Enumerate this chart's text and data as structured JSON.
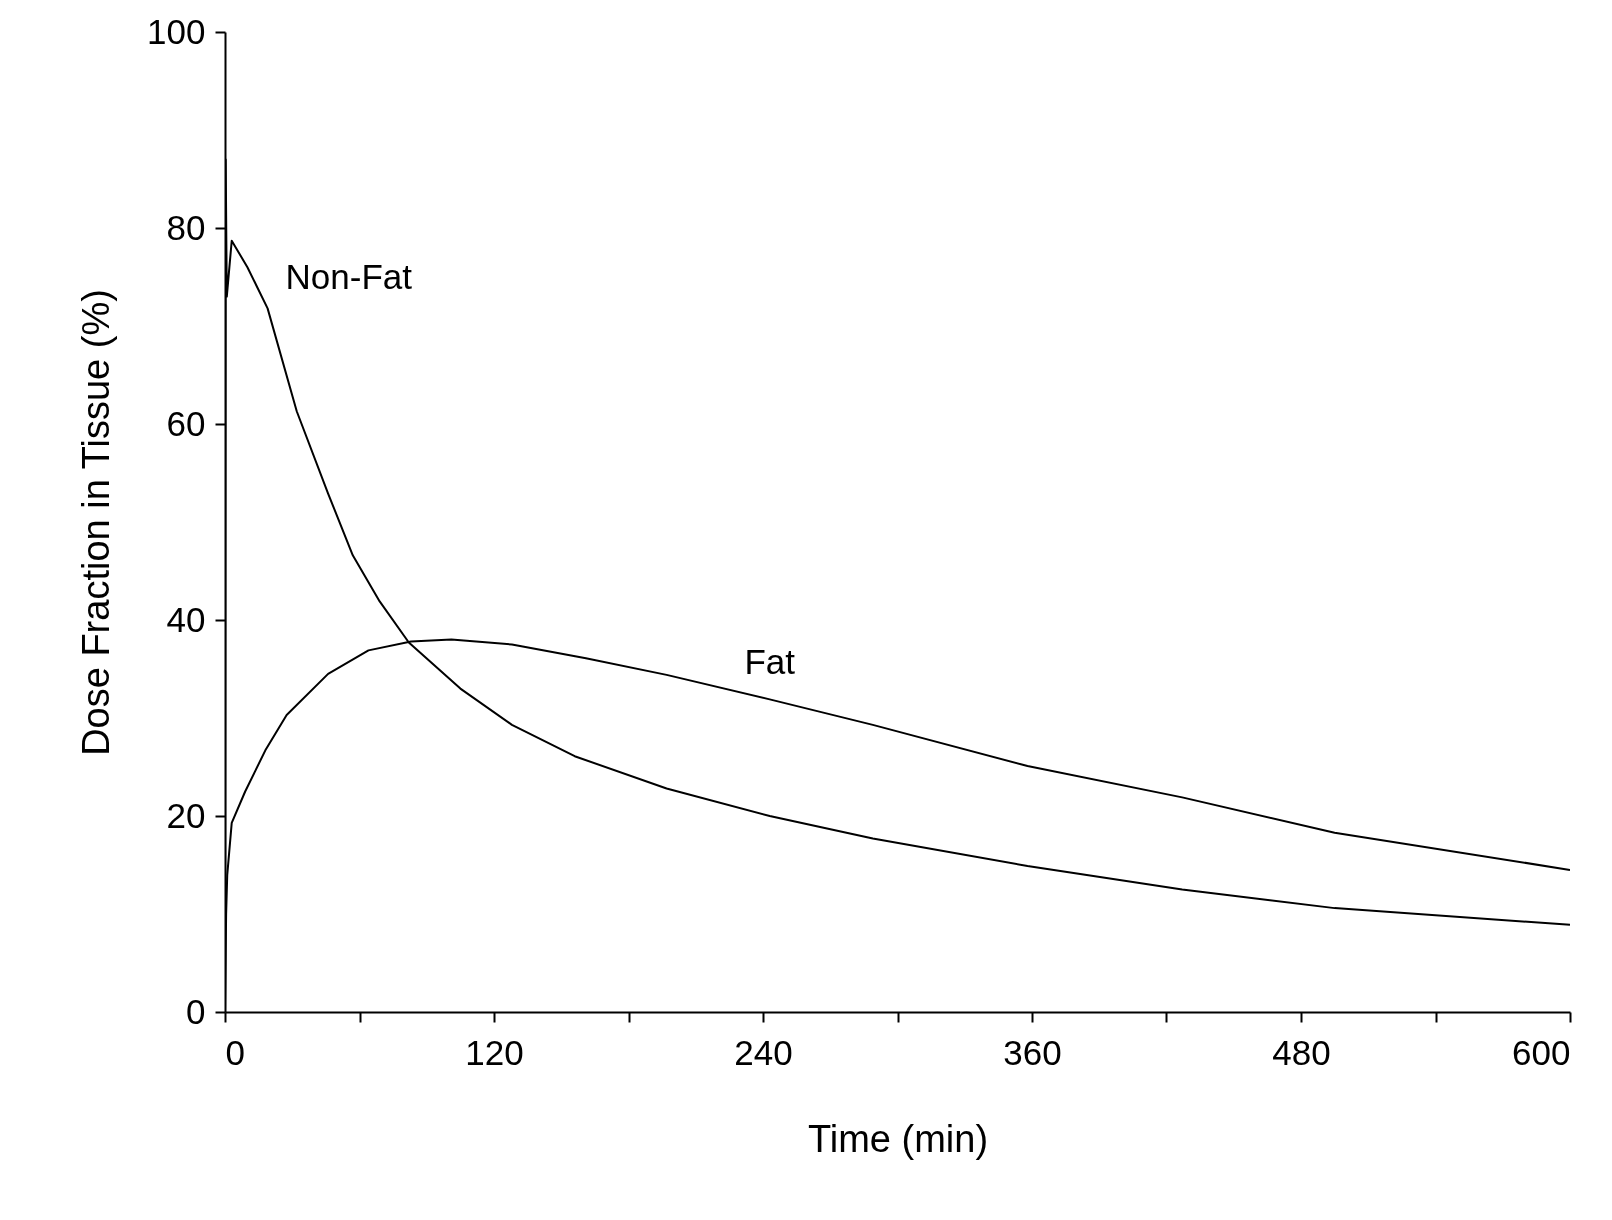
{
  "chart_data": {
    "type": "line",
    "xlabel": "Time (min)",
    "ylabel": "Dose Fraction in Tissue (%)",
    "xlim": [
      0,
      600
    ],
    "ylim": [
      0,
      100
    ],
    "xticks": [
      0,
      {
        "value": 60,
        "label": null
      },
      120,
      {
        "value": 180,
        "label": null
      },
      240,
      {
        "value": 300,
        "label": null
      },
      360,
      {
        "value": 420,
        "label": null
      },
      480,
      {
        "value": 540,
        "label": null
      },
      600
    ],
    "yticks": [
      0,
      20,
      40,
      60,
      80,
      100
    ],
    "grid": false,
    "legend": false,
    "line_style": "solid",
    "series": [
      {
        "name": "Non-Fat",
        "color": "#000000",
        "x": [
          0,
          0.3,
          0.8,
          3,
          10,
          19,
          32,
          46,
          57,
          69,
          82,
          105,
          128,
          156,
          197,
          243,
          289,
          358,
          427,
          495,
          600
        ],
        "values": [
          0,
          87,
          73,
          78.7,
          76,
          71.8,
          61.3,
          52.9,
          46.6,
          41.9,
          37.7,
          33,
          29.3,
          26.1,
          22.8,
          20,
          17.7,
          14.9,
          12.5,
          10.6,
          8.9
        ]
      },
      {
        "name": "Fat",
        "color": "#000000",
        "x": [
          0,
          0.5,
          1,
          3,
          9,
          18,
          27.5,
          46,
          64,
          83,
          101,
          128,
          161,
          197,
          243,
          289,
          358,
          427,
          495,
          600
        ],
        "values": [
          0,
          10,
          14,
          19.3,
          22.5,
          26.7,
          30.3,
          34.5,
          36.9,
          37.8,
          38,
          37.5,
          36.1,
          34.4,
          31.9,
          29.3,
          25.1,
          21.9,
          18.3,
          14.5
        ]
      }
    ]
  }
}
